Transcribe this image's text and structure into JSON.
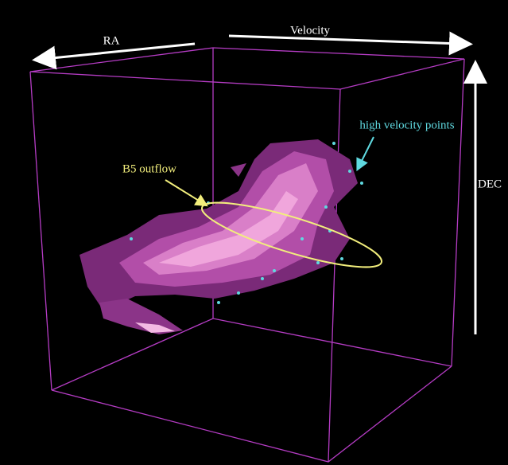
{
  "axes": {
    "ra": "RA",
    "velocity": "Velocity",
    "dec": "DEC"
  },
  "annotations": {
    "high_velocity": "high velocity points",
    "outflow": "B5 outflow"
  }
}
